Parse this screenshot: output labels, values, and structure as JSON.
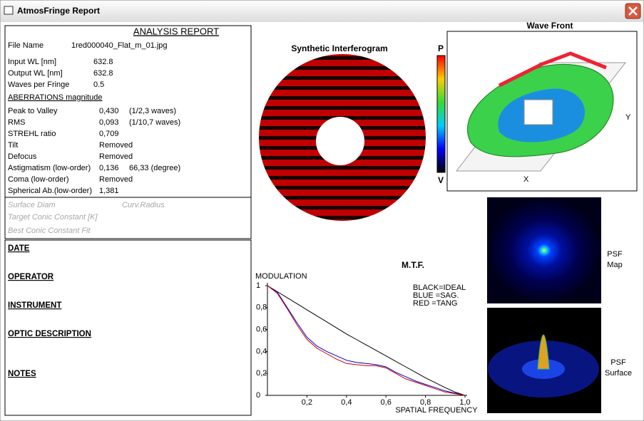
{
  "window": {
    "title": "AtmosFringe  Report"
  },
  "report": {
    "title": "ANALYSIS  REPORT",
    "file": {
      "label": "File Name",
      "value": "1red000040_Flat_m_01.jpg"
    },
    "params": [
      {
        "label": "Input  WL [nm]",
        "value": "632.8"
      },
      {
        "label": "Output WL [nm]",
        "value": "632.8"
      },
      {
        "label": "Waves per Fringe",
        "value": "0.5"
      }
    ],
    "aberrations_heading": "ABERRATIONS magnitude",
    "aberrations": [
      {
        "label": "Peak to Valley",
        "value": "0,430",
        "note": "(1/2,3 waves)"
      },
      {
        "label": "RMS",
        "value": "0,093",
        "note": "(1/10,7 waves)"
      },
      {
        "label": "STREHL ratio",
        "value": "0,709"
      },
      {
        "label": "Tilt",
        "value": "Removed"
      },
      {
        "label": "Defocus",
        "value": "Removed"
      },
      {
        "label": "Astigmatism  (low-order)",
        "value": "0,136",
        "note": "66,33  (degree)"
      },
      {
        "label": "Coma           (low-order)",
        "value": "Removed"
      },
      {
        "label": "Spherical Ab.(low-order)",
        "value": "1,381"
      }
    ],
    "surface_diam": "Surface Diam",
    "curv_radius": "Curv.Radius",
    "target_conic": "Target Conic Constant [K]",
    "best_conic": "Best Conic Constant Fit",
    "info_headings": [
      "DATE",
      "OPERATOR",
      "INSTRUMENT",
      "OPTIC DESCRIPTION",
      "NOTES"
    ]
  },
  "interferogram": {
    "title": "Synthetic Interferogram"
  },
  "wavefront": {
    "title": "Wave Front",
    "top_label": "P",
    "bottom_label": "V",
    "x_label": "X",
    "y_label": "Y"
  },
  "psf_map": {
    "label_1": "PSF",
    "label_2": "Map"
  },
  "psf_surface": {
    "label_1": "PSF",
    "label_2": "Surface"
  },
  "chart_data": {
    "type": "line",
    "title": "M.T.F.",
    "y_label": "MODULATION",
    "x_label": "SPATIAL FREQUENCY",
    "x": [
      0,
      0.05,
      0.1,
      0.15,
      0.2,
      0.25,
      0.3,
      0.35,
      0.4,
      0.45,
      0.5,
      0.55,
      0.6,
      0.65,
      0.7,
      0.75,
      0.8,
      0.85,
      0.9,
      0.95,
      1
    ],
    "series": [
      {
        "name": "BLACK=IDEAL",
        "color": "#000000",
        "values": [
          1,
          0.945,
          0.89,
          0.835,
          0.78,
          0.725,
          0.67,
          0.615,
          0.56,
          0.51,
          0.46,
          0.41,
          0.36,
          0.31,
          0.26,
          0.21,
          0.16,
          0.115,
          0.07,
          0.03,
          0
        ]
      },
      {
        "name": "BLUE  =SAG.",
        "color": "#0000c8",
        "values": [
          1,
          0.94,
          0.8,
          0.66,
          0.53,
          0.45,
          0.4,
          0.36,
          0.32,
          0.3,
          0.29,
          0.28,
          0.26,
          0.21,
          0.17,
          0.13,
          0.1,
          0.07,
          0.04,
          0.02,
          0
        ]
      },
      {
        "name": "RED    =TANG",
        "color": "#d00000",
        "values": [
          1,
          0.93,
          0.79,
          0.64,
          0.51,
          0.43,
          0.38,
          0.33,
          0.29,
          0.28,
          0.27,
          0.27,
          0.25,
          0.2,
          0.15,
          0.12,
          0.09,
          0.06,
          0.03,
          0.015,
          0
        ]
      }
    ],
    "xlim": [
      0,
      1
    ],
    "ylim": [
      0,
      1
    ],
    "xticks": [
      {
        "value": 0.2,
        "label": "0,2"
      },
      {
        "value": 0.4,
        "label": "0,4"
      },
      {
        "value": 0.6,
        "label": "0,6"
      },
      {
        "value": 0.8,
        "label": "0,8"
      },
      {
        "value": 1,
        "label": "1,0"
      }
    ],
    "yticks": [
      0,
      {
        "value": 0.2,
        "label": "0,2"
      },
      {
        "value": 0.4,
        "label": "0,4"
      },
      {
        "value": 0.6,
        "label": "0,6"
      },
      {
        "value": 0.8,
        "label": "0,8"
      },
      1
    ]
  }
}
